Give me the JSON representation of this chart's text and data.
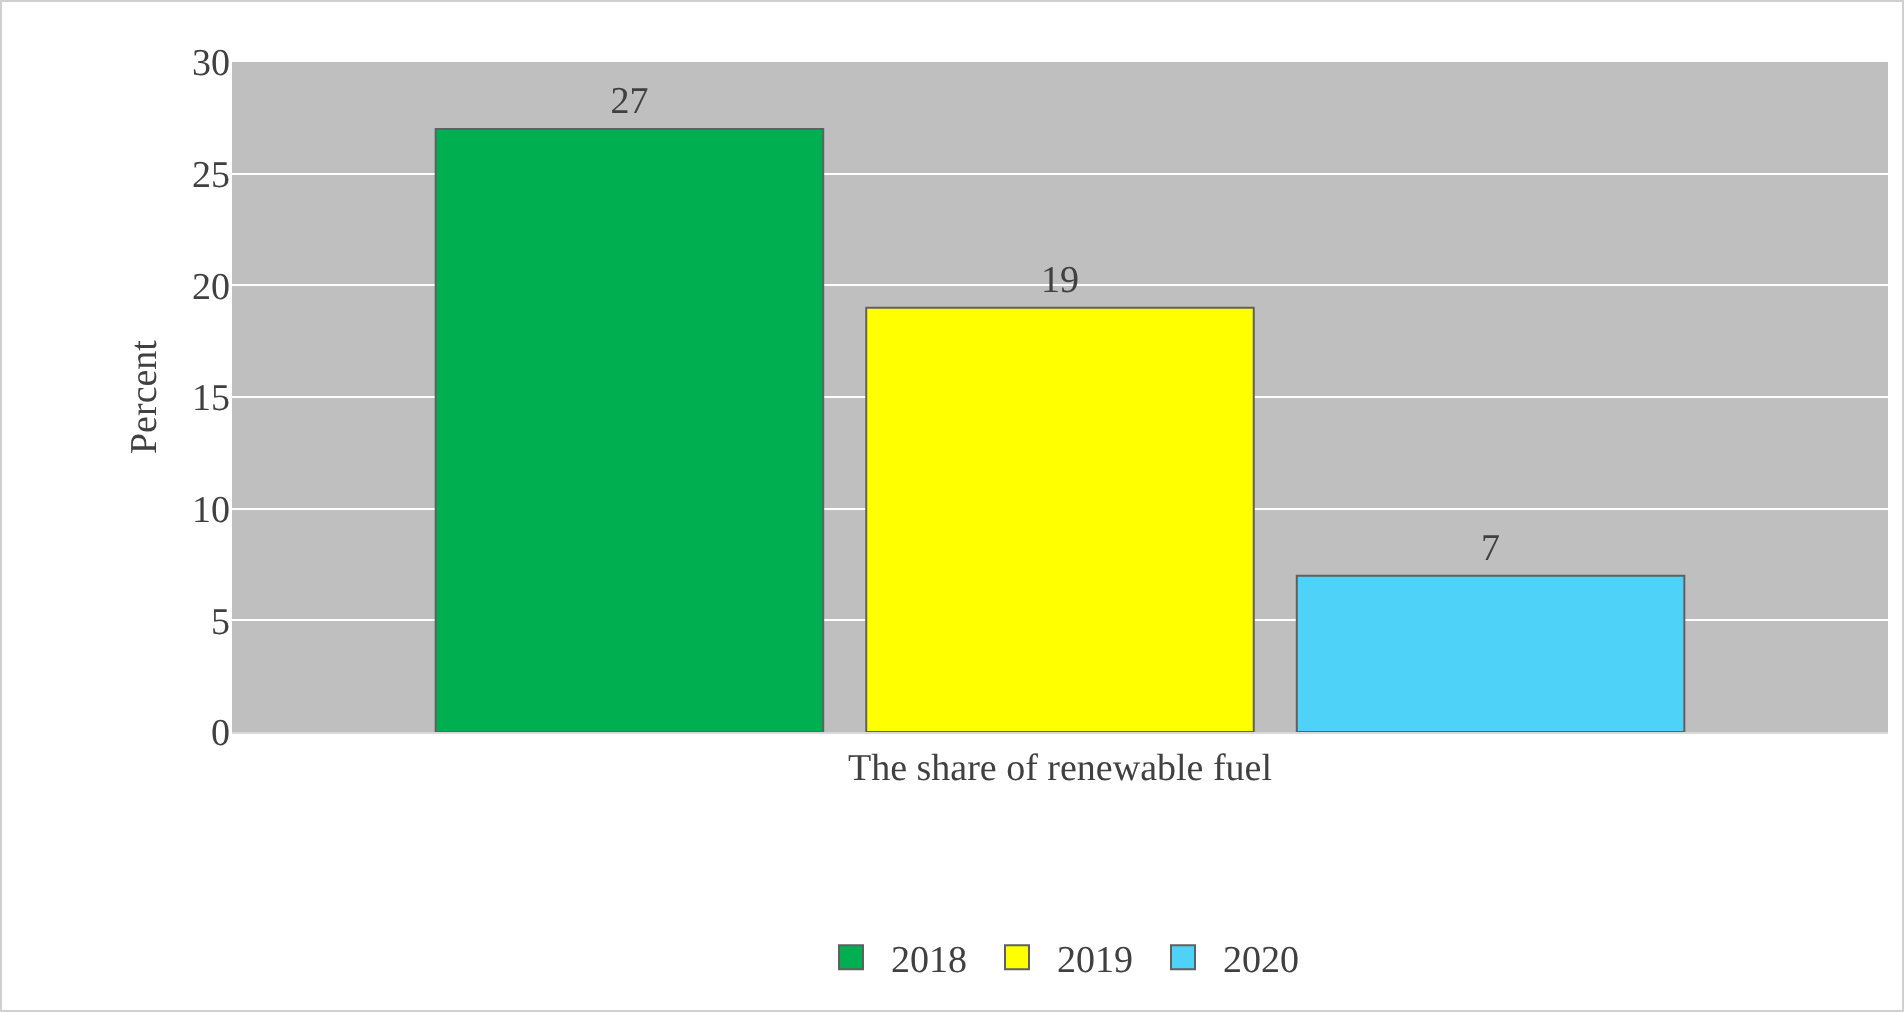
{
  "chart_data": {
    "type": "bar",
    "ylabel": "Percent",
    "categories": [
      "The share of renewable fuel"
    ],
    "series": [
      {
        "name": "2018",
        "color": "#00b050",
        "values": [
          27
        ]
      },
      {
        "name": "2019",
        "color": "#ffff00",
        "values": [
          19
        ]
      },
      {
        "name": "2020",
        "color": "#4fd2f7",
        "values": [
          7
        ]
      }
    ],
    "ylim": [
      0,
      30
    ],
    "yticks": [
      0,
      5,
      10,
      15,
      20,
      25,
      30
    ],
    "grid": true,
    "legend": "bottom",
    "data_labels": true
  }
}
